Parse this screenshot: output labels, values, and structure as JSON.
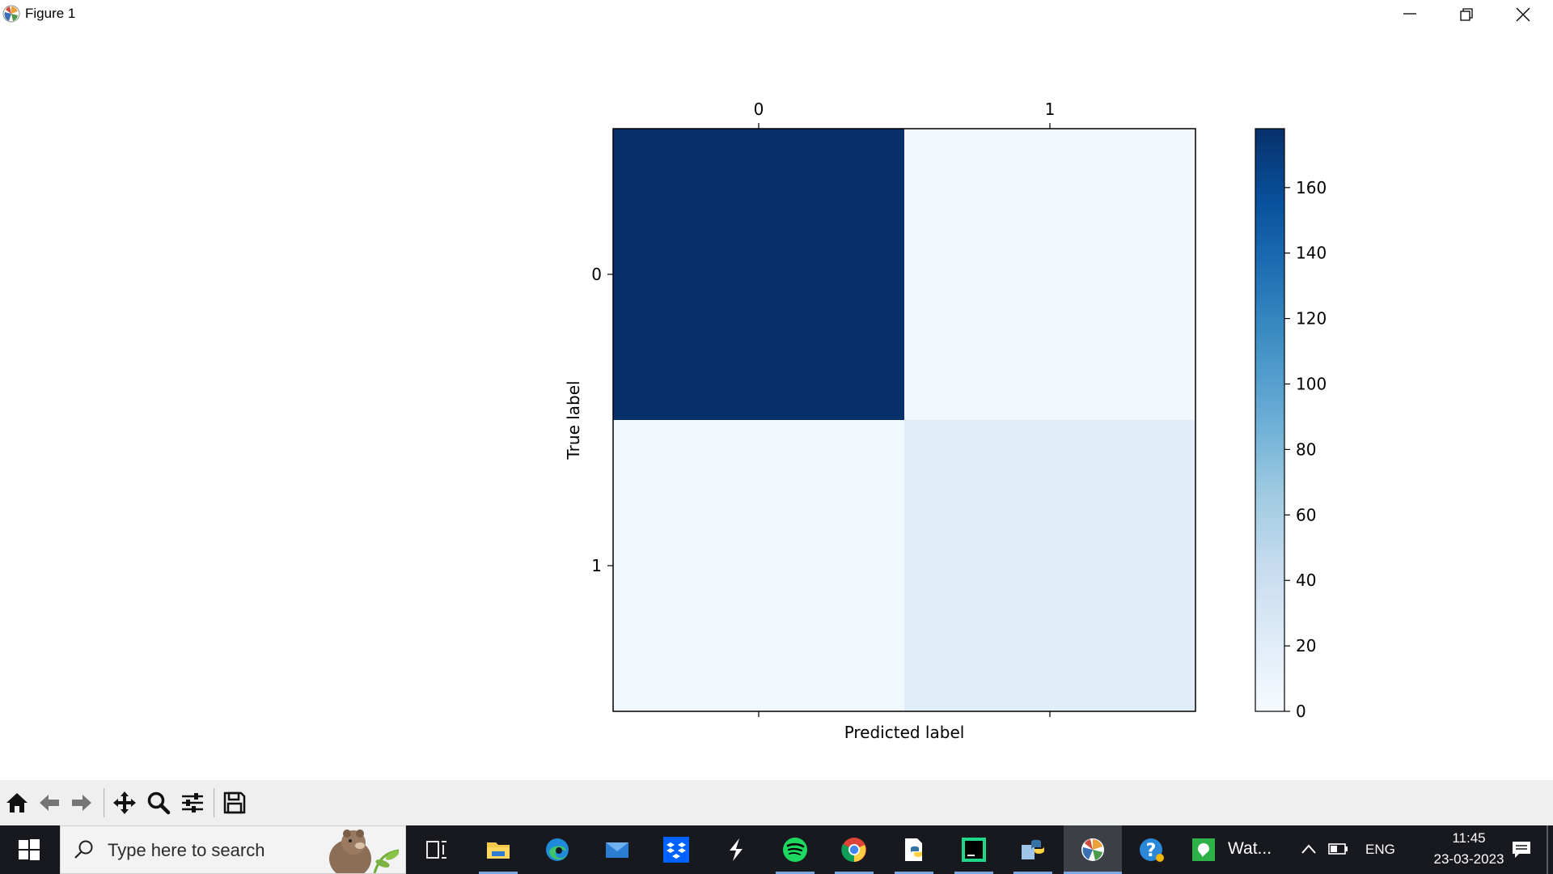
{
  "window": {
    "title": "Figure 1",
    "controls": [
      "minimize",
      "restore",
      "close"
    ]
  },
  "chart_data": {
    "type": "heatmap",
    "rows": [
      "0",
      "1"
    ],
    "columns": [
      "0",
      "1"
    ],
    "values": [
      [
        178,
        4
      ],
      [
        6,
        20
      ]
    ],
    "xlabel": "Predicted label",
    "ylabel": "True label",
    "xticks_position": "top",
    "colormap": "Blues",
    "colorbar": {
      "min": 0,
      "max": 178,
      "ticks": [
        0,
        20,
        40,
        60,
        80,
        100,
        120,
        140,
        160
      ],
      "tick_labels": [
        "0",
        "20",
        "40",
        "60",
        "80",
        "100",
        "120",
        "140",
        "160"
      ]
    },
    "grid": false
  },
  "colors": {
    "cmap_low": "#f7fbff",
    "cmap_high": "#08306b",
    "toolbar_bg": "#efefef",
    "taskbar_bg": "#17191e"
  },
  "mpl_toolbar": {
    "buttons": [
      "home-icon",
      "back-icon",
      "forward-icon",
      "pan-icon",
      "zoom-icon",
      "configure-subplots-icon",
      "save-icon"
    ]
  },
  "taskbar": {
    "search_placeholder": "Type here to search",
    "apps": [
      "task-view-icon",
      "file-explorer-icon",
      "edge-icon",
      "mail-icon",
      "dropbox-icon",
      "app-s-icon",
      "spotify-icon",
      "chrome-icon",
      "python-file-icon",
      "pycharm-icon",
      "python-launcher-icon",
      "matplotlib-icon",
      "help-icon",
      "whatsapp-icon"
    ],
    "whatsapp_label": "Wat...",
    "tray": {
      "language": "ENG",
      "time": "11:45",
      "date": "23-03-2023"
    }
  }
}
